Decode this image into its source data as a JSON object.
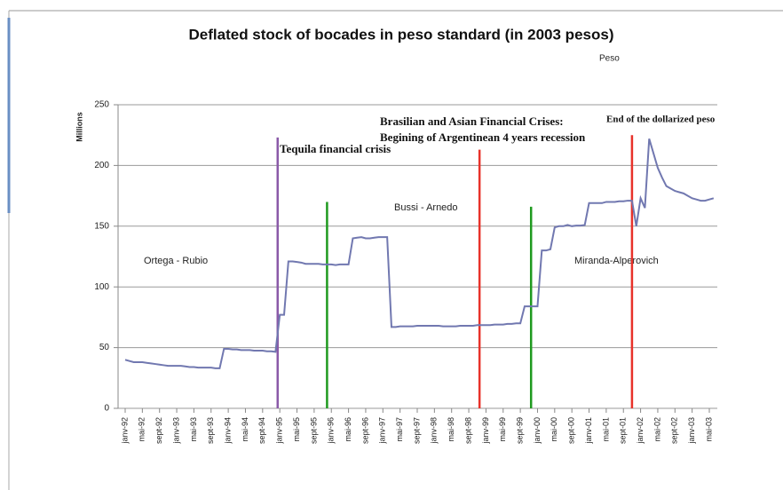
{
  "chart_data": {
    "type": "line",
    "title": "Deflated stock of bocades in peso standard (in 2003 pesos)",
    "y_label": "Millions",
    "categories": [
      "janv-92",
      null,
      null,
      null,
      "mai-92",
      null,
      null,
      null,
      "sept-92",
      null,
      null,
      null,
      "janv-93",
      null,
      null,
      null,
      "mai-93",
      null,
      null,
      null,
      "sept-93",
      null,
      null,
      null,
      "janv-94",
      null,
      null,
      null,
      "mai-94",
      null,
      null,
      null,
      "sept-94",
      null,
      null,
      null,
      "janv-95",
      null,
      null,
      null,
      "mai-95",
      null,
      null,
      null,
      "sept-95",
      null,
      null,
      null,
      "janv-96",
      null,
      null,
      null,
      "mai-96",
      null,
      null,
      null,
      "sept-96",
      null,
      null,
      null,
      "janv-97",
      null,
      null,
      null,
      "mai-97",
      null,
      null,
      null,
      "sept-97",
      null,
      null,
      null,
      "janv-98",
      null,
      null,
      null,
      "mai-98",
      null,
      null,
      null,
      "sept-98",
      null,
      null,
      null,
      "janv-99",
      null,
      null,
      null,
      "mai-99",
      null,
      null,
      null,
      "sept-99",
      null,
      null,
      null,
      "janv-00",
      null,
      null,
      null,
      "mai-00",
      null,
      null,
      null,
      "sept-00",
      null,
      null,
      null,
      "janv-01",
      null,
      null,
      null,
      "mai-01",
      null,
      null,
      null,
      "sept-01",
      null,
      null,
      null,
      "janv-02",
      null,
      null,
      null,
      "mai-02",
      null,
      null,
      null,
      "sept-02",
      null,
      null,
      null,
      "janv-03",
      null,
      null,
      null,
      "mai-03",
      null
    ],
    "series": [
      {
        "name": "Peso",
        "color": "#7178b0",
        "values": [
          40,
          39,
          38,
          38,
          38,
          37.5,
          37,
          36.5,
          36,
          35.5,
          35,
          35,
          35,
          35,
          34.5,
          34,
          34,
          33.5,
          33.5,
          33.5,
          33.5,
          33,
          33,
          49,
          49,
          48.5,
          48.5,
          48,
          48,
          48,
          47.5,
          47.5,
          47.5,
          47,
          47,
          46.5,
          77,
          77,
          121,
          121,
          120.5,
          120,
          119,
          119,
          119,
          119,
          118.5,
          118.5,
          118.5,
          118,
          118.5,
          118.5,
          118.5,
          140,
          140.5,
          141,
          140,
          140,
          140.5,
          141,
          141,
          141,
          67,
          67,
          67.5,
          67.5,
          67.5,
          67.5,
          68,
          68,
          68,
          68,
          68,
          68,
          67.5,
          67.5,
          67.5,
          67.5,
          68,
          68,
          68,
          68,
          68.5,
          68.5,
          68.5,
          68.5,
          69,
          69,
          69,
          69.5,
          69.5,
          70,
          70,
          84,
          84,
          84,
          84,
          130,
          130,
          131,
          149,
          150,
          150,
          151,
          150,
          150.5,
          150.5,
          151,
          169,
          169,
          169,
          169,
          170,
          170,
          170,
          170.5,
          170.5,
          171,
          171,
          150,
          173,
          165,
          222,
          210,
          198,
          190,
          183,
          181,
          179,
          178,
          177,
          175,
          173,
          172,
          171,
          171,
          172,
          173
        ]
      }
    ],
    "ylim": [
      0,
      250
    ],
    "yticks": [
      0,
      50,
      100,
      150,
      200,
      250
    ],
    "grid": true,
    "events": [
      {
        "at_index": 35.5,
        "top": 223,
        "color": "#8a5aa8"
      },
      {
        "at_index": 47,
        "top": 170,
        "color": "#1f9a1f"
      },
      {
        "at_index": 82.5,
        "top": 213,
        "color": "#e8322a"
      },
      {
        "at_index": 94.5,
        "top": 166,
        "color": "#1f9a1f"
      },
      {
        "at_index": 118,
        "top": 225,
        "color": "#e8322a"
      }
    ],
    "annotations": [
      "Tequila financial crisis",
      "Bussi - Arnedo",
      "Ortega - Rubio",
      "Miranda-Alperovich",
      "Brasilian and Asian Financial Crises:",
      "Begining of Argentinean 4 years recession",
      "End of the dollarized peso"
    ]
  }
}
